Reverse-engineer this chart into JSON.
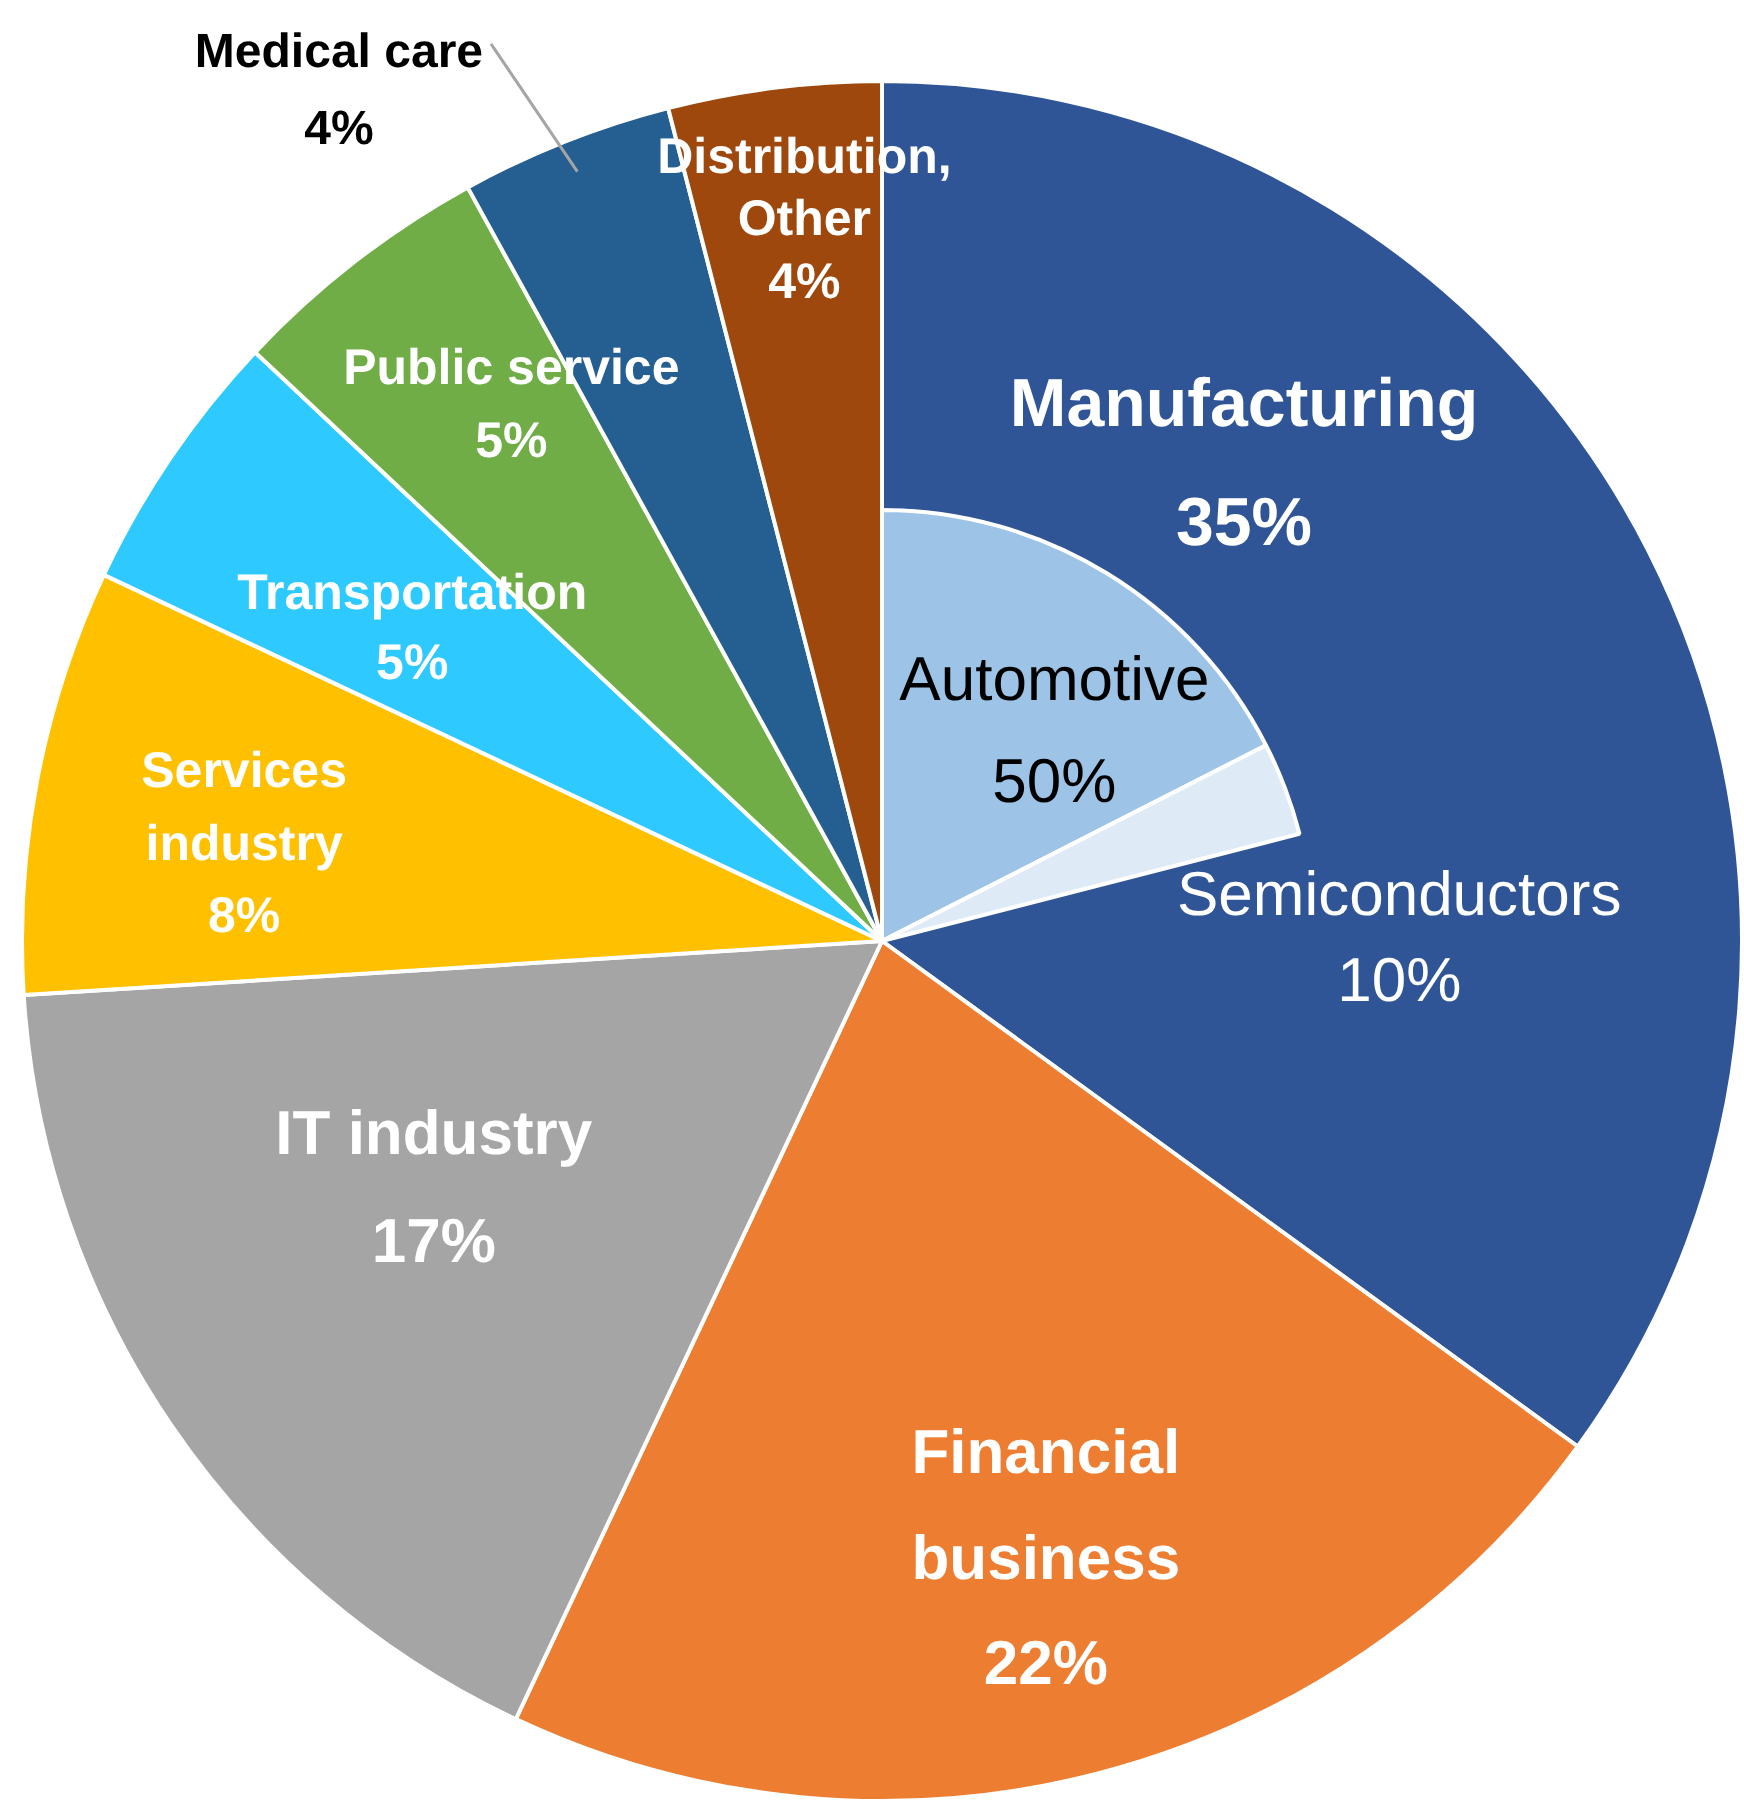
{
  "chart_data": [
    {
      "type": "pie",
      "categories": [
        "Manufacturing",
        "Financial business",
        "IT industry",
        "Services industry",
        "Transportation",
        "Public service",
        "Medical care",
        "Distribution, Other"
      ],
      "values": [
        35,
        22,
        17,
        8,
        5,
        5,
        4,
        4
      ],
      "value_labels": [
        "35%",
        "22%",
        "17%",
        "8%",
        "5%",
        "5%",
        "4%",
        "4%"
      ],
      "colors": [
        "#2f5597",
        "#ed7d31",
        "#a5a5a5",
        "#ffc000",
        "#2ec9ff",
        "#70ad47",
        "#255e91",
        "#9e480e"
      ]
    },
    {
      "type": "pie",
      "categories": [
        "Automotive",
        "Semiconductors"
      ],
      "values": [
        50,
        10
      ],
      "value_labels": [
        "50%",
        "10%"
      ],
      "colors": [
        "#9dc3e6",
        "#deebf7"
      ]
    }
  ]
}
